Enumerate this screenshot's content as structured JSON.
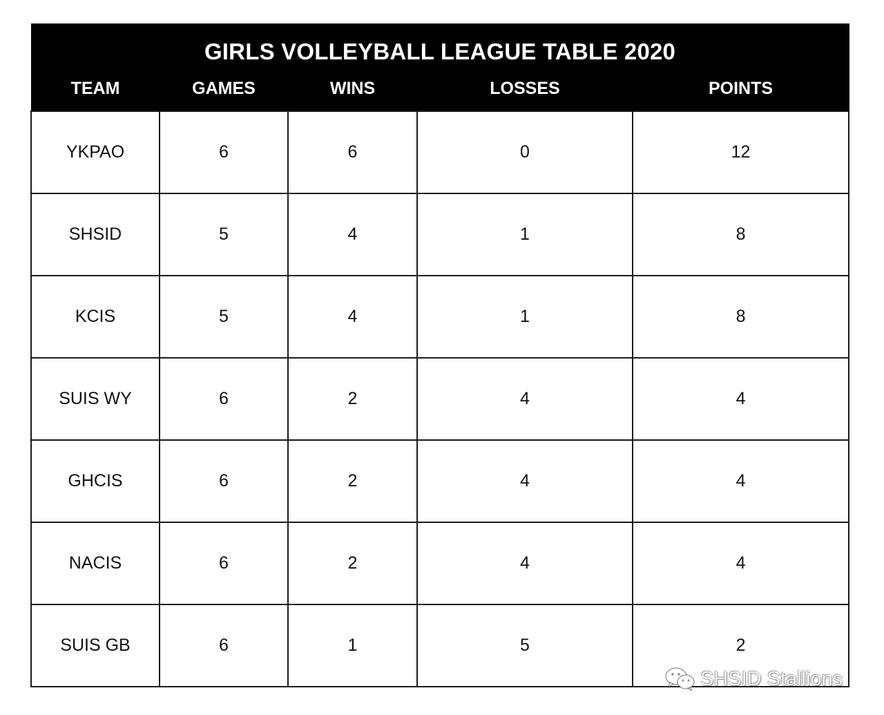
{
  "title": "GIRLS VOLLEYBALL LEAGUE TABLE 2020",
  "columns": [
    "TEAM",
    "GAMES",
    "WINS",
    "LOSSES",
    "POINTS"
  ],
  "rows": [
    [
      "YKPAO",
      "6",
      "6",
      "0",
      "12"
    ],
    [
      "SHSID",
      "5",
      "4",
      "1",
      "8"
    ],
    [
      "KCIS",
      "5",
      "4",
      "1",
      "8"
    ],
    [
      "SUIS WY",
      "6",
      "2",
      "4",
      "4"
    ],
    [
      "GHCIS",
      "6",
      "2",
      "4",
      "4"
    ],
    [
      "NACIS",
      "6",
      "2",
      "4",
      "4"
    ],
    [
      "SUIS GB",
      "6",
      "1",
      "5",
      "2"
    ]
  ],
  "watermark": {
    "icon": "wechat-icon",
    "text": "SHSID Stallions"
  }
}
